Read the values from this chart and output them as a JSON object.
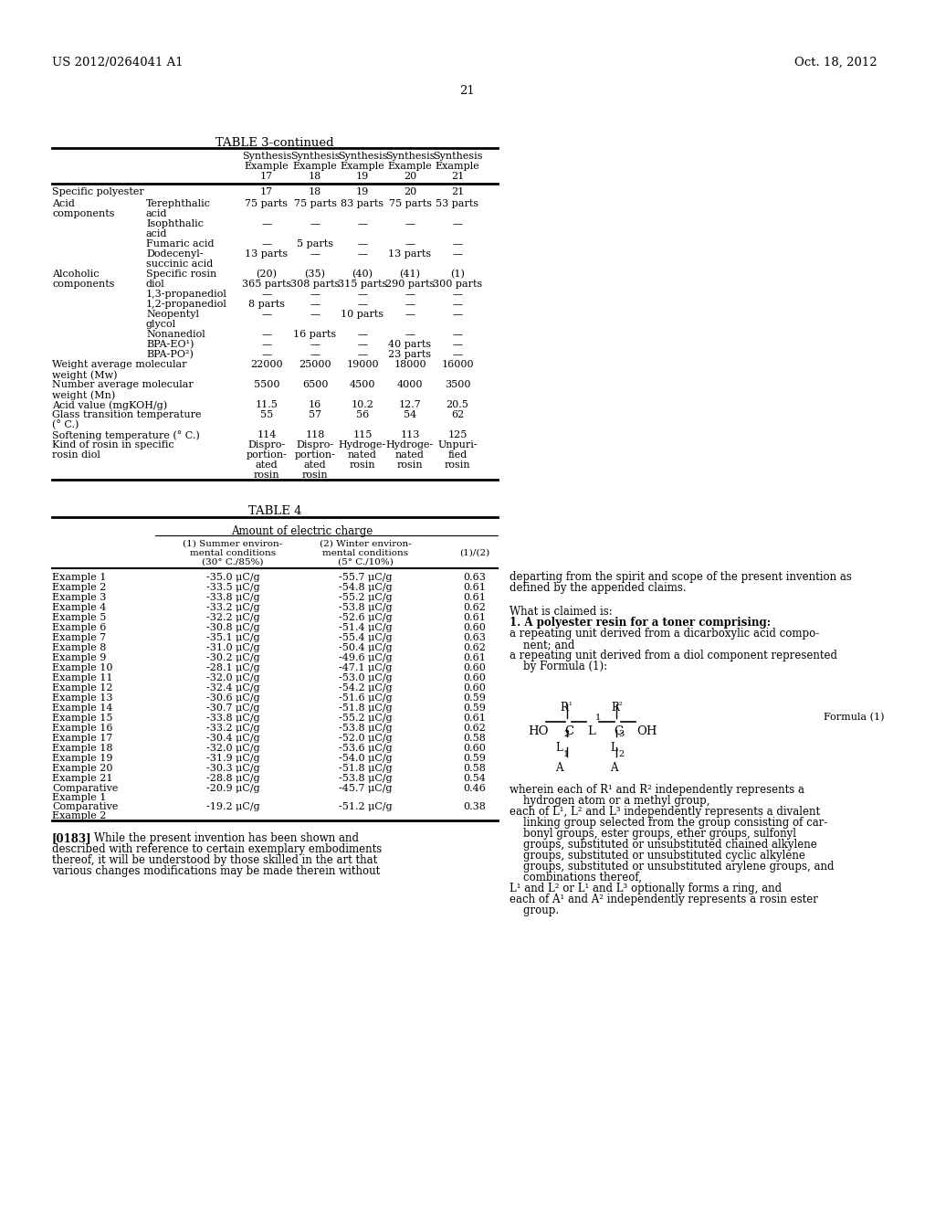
{
  "header_left": "US 2012/0264041 A1",
  "header_right": "Oct. 18, 2012",
  "page_number": "21",
  "background_color": "#ffffff",
  "table3_title": "TABLE 3-continued",
  "table4_title": "TABLE 4",
  "col_headers": [
    "Synthesis\nExample\n17",
    "Synthesis\nExample\n18",
    "Synthesis\nExample\n19",
    "Synthesis\nExample\n20",
    "Synthesis\nExample\n21"
  ],
  "table3_rows": [
    [
      "Specific polyester",
      "",
      "17",
      "18",
      "19",
      "20",
      "21"
    ],
    [
      "Acid",
      "Terephthalic acid",
      "75 parts",
      "75 parts",
      "83 parts",
      "75 parts",
      "53 parts"
    ],
    [
      "components",
      "Isophthalic acid",
      "—",
      "—",
      "—",
      "—",
      "—"
    ],
    [
      "",
      "Fumaric acid",
      "—",
      "5 parts",
      "—",
      "—",
      "—"
    ],
    [
      "",
      "Dodecenyl-\nsuccinic acid",
      "13 parts",
      "—",
      "—",
      "13 parts",
      "—"
    ],
    [
      "Alcoholic",
      "Specific rosin\ndiol",
      "(20)\n365 parts",
      "(35)\n308 parts",
      "(40)\n315 parts",
      "(41)\n290 parts",
      "(1)\n300 parts"
    ],
    [
      "components",
      "1,3-propanediol",
      "—",
      "—",
      "—",
      "—",
      "—"
    ],
    [
      "",
      "1,2-propanediol",
      "8 parts",
      "—",
      "—",
      "—",
      "—"
    ],
    [
      "",
      "Neopentyl\nglycol",
      "—",
      "—",
      "10 parts",
      "—",
      "—"
    ],
    [
      "",
      "Nonanediol",
      "—",
      "16 parts",
      "—",
      "—",
      "—"
    ],
    [
      "",
      "BPA-EO¹⁾",
      "—",
      "—",
      "—",
      "40 parts",
      "—"
    ],
    [
      "",
      "BPA-PO²⁾",
      "—",
      "—",
      "—",
      "23 parts",
      "—"
    ],
    [
      "Weight average molecular\nweight (Mw)",
      "",
      "22000",
      "25000",
      "19000",
      "18000",
      "16000"
    ],
    [
      "Number average molecular\nweight (Mn)",
      "",
      "5500",
      "6500",
      "4500",
      "4000",
      "3500"
    ],
    [
      "Acid value (mgKOH/g)",
      "",
      "11.5",
      "16",
      "10.2",
      "12.7",
      "20.5"
    ],
    [
      "Glass transition temperature\n(° C.)",
      "",
      "55",
      "57",
      "56",
      "54",
      "62"
    ],
    [
      "Softening temperature (° C.)",
      "",
      "114",
      "118",
      "115",
      "113",
      "125"
    ],
    [
      "Kind of rosin in specific\nrosin diol",
      "",
      "Dispro-\nportion-\nated\nrosin",
      "Dispro-\nportion-\nated\nrosin",
      "Hydroge-\nnated\nrosin",
      "Hydroge-\nnated\nrosin",
      "Unpuri-\nfied\nrosin"
    ]
  ],
  "table4_data": [
    [
      "Example 1",
      "-35.0 μC/g",
      "-55.7 μC/g",
      "0.63"
    ],
    [
      "Example 2",
      "-33.5 μC/g",
      "-54.8 μC/g",
      "0.61"
    ],
    [
      "Example 3",
      "-33.8 μC/g",
      "-55.2 μC/g",
      "0.61"
    ],
    [
      "Example 4",
      "-33.2 μC/g",
      "-53.8 μC/g",
      "0.62"
    ],
    [
      "Example 5",
      "-32.2 μC/g",
      "-52.6 μC/g",
      "0.61"
    ],
    [
      "Example 6",
      "-30.8 μC/g",
      "-51.4 μC/g",
      "0.60"
    ],
    [
      "Example 7",
      "-35.1 μC/g",
      "-55.4 μC/g",
      "0.63"
    ],
    [
      "Example 8",
      "-31.0 μC/g",
      "-50.4 μC/g",
      "0.62"
    ],
    [
      "Example 9",
      "-30.2 μC/g",
      "-49.6 μC/g",
      "0.61"
    ],
    [
      "Example 10",
      "-28.1 μC/g",
      "-47.1 μC/g",
      "0.60"
    ],
    [
      "Example 11",
      "-32.0 μC/g",
      "-53.0 μC/g",
      "0.60"
    ],
    [
      "Example 12",
      "-32.4 μC/g",
      "-54.2 μC/g",
      "0.60"
    ],
    [
      "Example 13",
      "-30.6 μC/g",
      "-51.6 μC/g",
      "0.59"
    ],
    [
      "Example 14",
      "-30.7 μC/g",
      "-51.8 μC/g",
      "0.59"
    ],
    [
      "Example 15",
      "-33.8 μC/g",
      "-55.2 μC/g",
      "0.61"
    ],
    [
      "Example 16",
      "-33.2 μC/g",
      "-53.8 μC/g",
      "0.62"
    ],
    [
      "Example 17",
      "-30.4 μC/g",
      "-52.0 μC/g",
      "0.58"
    ],
    [
      "Example 18",
      "-32.0 μC/g",
      "-53.6 μC/g",
      "0.60"
    ],
    [
      "Example 19",
      "-31.9 μC/g",
      "-54.0 μC/g",
      "0.59"
    ],
    [
      "Example 20",
      "-30.3 μC/g",
      "-51.8 μC/g",
      "0.58"
    ],
    [
      "Example 21",
      "-28.8 μC/g",
      "-53.8 μC/g",
      "0.54"
    ],
    [
      "Comparative\nExample 1",
      "-20.9 μC/g",
      "-45.7 μC/g",
      "0.46"
    ],
    [
      "Comparative\nExample 2",
      "-19.2 μC/g",
      "-51.2 μC/g",
      "0.38"
    ]
  ],
  "right_col_text1": [
    "departing from the spirit and scope of the present invention as",
    "defined by the appended claims."
  ],
  "right_col_text2": [
    "What is claimed is:",
    "1. A polyester resin for a toner comprising:",
    "a repeating unit derived from a dicarboxylic acid compo-",
    "    nent; and",
    "a repeating unit derived from a diol component represented",
    "    by Formula (1):"
  ],
  "formula_label": "Formula (1)",
  "right_col_text3": [
    "wherein each of R¹ and R² independently represents a",
    "    hydrogen atom or a methyl group,",
    "each of L¹, L² and L³ independently represents a divalent",
    "    linking group selected from the group consisting of car-",
    "    bonyl groups, ester groups, ether groups, sulfonyl",
    "    groups, substituted or unsubstituted chained alkylene",
    "    groups, substituted or unsubstituted cyclic alkylene",
    "    groups, substituted or unsubstituted arylene groups, and",
    "    combinations thereof,",
    "L¹ and L² or L¹ and L³ optionally forms a ring, and",
    "each of A¹ and A² independently represents a rosin ester",
    "    group."
  ],
  "para0183": [
    "[0183]  While the present invention has been shown and",
    "described with reference to certain exemplary embodiments",
    "thereof, it will be understood by those skilled in the art that",
    "various changes modifications may be made therein without"
  ]
}
